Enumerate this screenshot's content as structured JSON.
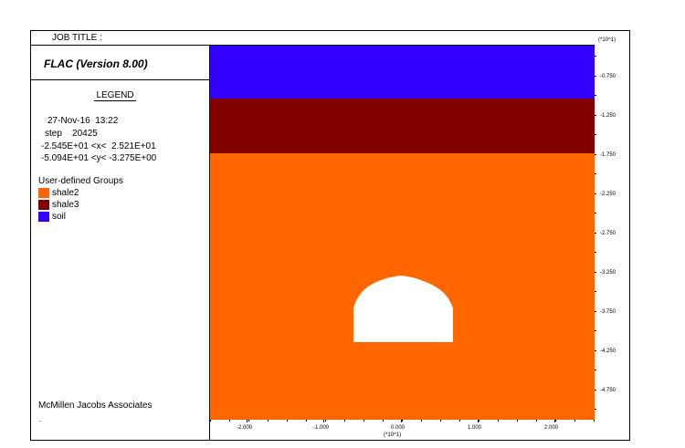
{
  "header": {
    "job_title_label": "JOB TITLE :"
  },
  "legend_panel": {
    "version": "FLAC (Version 8.00)",
    "legend_title": "LEGEND",
    "date_time": "27-Nov-16  13:22",
    "step": "step    20425",
    "x_range": "-2.545E+01 <x<  2.521E+01",
    "y_range": "-5.094E+01 <y< -3.275E+00",
    "groups_title": "User-defined Groups",
    "groups": [
      {
        "label": "shale2",
        "color": "#ff6600"
      },
      {
        "label": "shale3",
        "color": "#800000"
      },
      {
        "label": "soil",
        "color": "#3300ff"
      }
    ],
    "company": "McMillen Jacobs Associates",
    "footer_dot": "."
  },
  "plot": {
    "soil_color": "#3300ff",
    "shale3_color": "#800000",
    "shale2_color": "#ff6600",
    "tunnel_color": "#ffffff"
  },
  "x_axis": {
    "ticks": [
      "-2.000",
      "-1.000",
      "0.000",
      "1.000",
      "2.000"
    ],
    "multiplier": "(*10^1)"
  },
  "y_axis": {
    "multiplier": "(*10^1)",
    "ticks": [
      "-0.750",
      "-1.250",
      "-1.750",
      "-2.250",
      "-2.750",
      "-3.250",
      "-3.750",
      "-4.250",
      "-4.750"
    ]
  }
}
